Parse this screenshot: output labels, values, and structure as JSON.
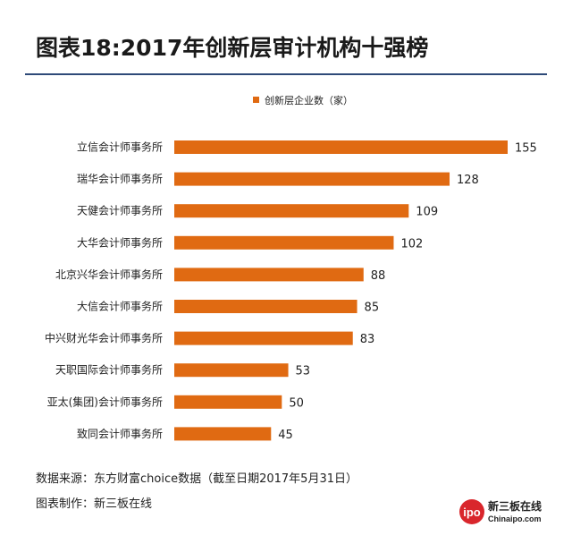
{
  "title": "图表18:2017年创新层审计机构十强榜",
  "footer": {
    "source": "数据来源：东方财富choice数据（截至日期2017年5月31日）",
    "maker": "图表制作：新三板在线"
  },
  "logo": {
    "badge": "ipo",
    "name": "新三板在线",
    "site": "Chinaipo.com"
  },
  "colors": {
    "bar": "#e06a12",
    "rule": "#2e4a78"
  },
  "chart_data": {
    "type": "bar",
    "orientation": "horizontal",
    "categories": [
      "立信会计师事务所",
      "瑞华会计师事务所",
      "天健会计师事务所",
      "大华会计师事务所",
      "北京兴华会计师事务所",
      "大信会计师事务所",
      "中兴财光华会计师事务所",
      "天职国际会计师事务所",
      "亚太(集团)会计师事务所",
      "致同会计师事务所"
    ],
    "series": [
      {
        "name": "创新层企业数（家）",
        "values": [
          155,
          128,
          109,
          102,
          88,
          85,
          83,
          53,
          50,
          45
        ]
      }
    ],
    "xlim": [
      0,
      155
    ],
    "legend_position": "top",
    "grid": false
  }
}
